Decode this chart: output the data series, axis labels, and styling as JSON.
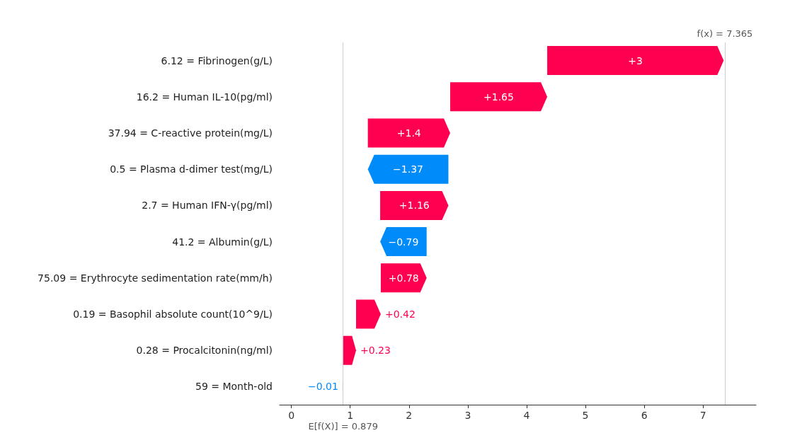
{
  "chart_data": {
    "type": "bar",
    "orientation": "horizontal",
    "categories": [
      "6.12 = Fibrinogen(g/L)",
      "16.2 = Human IL-10(pg/ml)",
      "37.94 = C-reactive protein(mg/L)",
      "0.5 = Plasma d-dimer test(mg/L)",
      "2.7 = Human IFN-γ(pg/ml)",
      "41.2 = Albumin(g/L)",
      "75.09 = Erythrocyte sedimentation rate(mm/h)",
      "0.19 = Basophil absolute count(10^9/L)",
      "0.28 = Procalcitonin(ng/ml)",
      "59 = Month-old"
    ],
    "values": [
      3,
      1.65,
      1.4,
      -1.37,
      1.16,
      -0.79,
      0.78,
      0.42,
      0.23,
      -0.01
    ],
    "base": [
      4.35,
      2.7,
      1.3,
      2.67,
      1.51,
      2.3,
      1.52,
      1.1,
      0.87,
      0.88
    ],
    "colors": [
      "#ff0051",
      "#ff0051",
      "#ff0051",
      "#008bfb",
      "#ff0051",
      "#008bfb",
      "#ff0051",
      "#ff0051",
      "#ff0051",
      "#008bfb"
    ],
    "value_labels": [
      "+3",
      "+1.65",
      "+1.4",
      "−1.37",
      "+1.16",
      "−0.79",
      "+0.78",
      "+0.42",
      "+0.23",
      "−0.01"
    ],
    "xlim": [
      -0.2,
      7.9
    ],
    "xticks": [
      0,
      1,
      2,
      3,
      4,
      5,
      6,
      7
    ],
    "ref_lines": [
      {
        "axis": "x",
        "value": 7.365,
        "label": "f(x) = 7.365",
        "color": "#cccccc"
      },
      {
        "axis": "x",
        "value": 0.879,
        "label": "E[f(X)] = 0.879",
        "color": "#cccccc"
      }
    ]
  }
}
